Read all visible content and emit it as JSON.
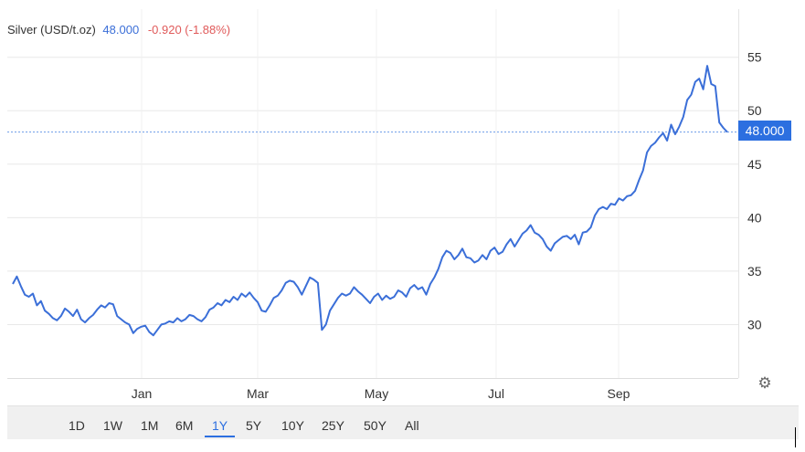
{
  "header": {
    "symbol": "Silver (USD/t.oz)",
    "price": "48.000",
    "change": "-0.920 (-1.88%)"
  },
  "last_price_label": "48.000",
  "colors": {
    "line": "#3b6fd8",
    "accent": "#2c6fe0",
    "negative": "#e05a5a",
    "grid": "#e8e8e8"
  },
  "icons": {
    "settings": "gear-icon"
  },
  "range_buttons": [
    "1D",
    "1W",
    "1M",
    "6M",
    "1Y",
    "5Y",
    "10Y",
    "25Y",
    "50Y",
    "All"
  ],
  "active_range": "1Y",
  "chart_data": {
    "type": "line",
    "title": "",
    "xlabel": "",
    "ylabel": "",
    "x_ticks": [
      "Jan",
      "Mar",
      "May",
      "Jul",
      "Sep"
    ],
    "y_ticks": [
      30,
      35,
      40,
      45,
      50,
      55
    ],
    "ylim": [
      25.0,
      59.5
    ],
    "grid": true,
    "last_value": 48.0,
    "series": [
      {
        "values": [
          33.8,
          34.5,
          33.6,
          32.8,
          32.6,
          32.9,
          31.8,
          32.2,
          31.3,
          31.0,
          30.6,
          30.4,
          30.8,
          31.5,
          31.2,
          30.8,
          31.4,
          30.5,
          30.2,
          30.6,
          30.9,
          31.4,
          31.8,
          31.6,
          32.0,
          31.9,
          30.8,
          30.5,
          30.2,
          30.0,
          29.2,
          29.6,
          29.8,
          29.9,
          29.3,
          29.0,
          29.5,
          30.0,
          30.1,
          30.3,
          30.2,
          30.6,
          30.3,
          30.5,
          30.9,
          30.8,
          30.5,
          30.3,
          30.7,
          31.4,
          31.6,
          32.0,
          31.8,
          32.3,
          32.1,
          32.6,
          32.3,
          32.9,
          32.6,
          33.0,
          32.5,
          32.1,
          31.3,
          31.2,
          31.8,
          32.5,
          32.7,
          33.2,
          33.9,
          34.1,
          34.0,
          33.5,
          32.8,
          33.6,
          34.4,
          34.2,
          33.9,
          29.5,
          30.0,
          31.3,
          31.9,
          32.5,
          32.9,
          32.7,
          32.9,
          33.5,
          33.1,
          32.8,
          32.4,
          32.0,
          32.6,
          32.9,
          32.3,
          32.7,
          32.4,
          32.6,
          33.2,
          33.0,
          32.6,
          33.4,
          33.7,
          33.3,
          33.5,
          32.8,
          33.8,
          34.4,
          35.2,
          36.3,
          36.9,
          36.7,
          36.1,
          36.5,
          37.1,
          36.3,
          36.2,
          35.8,
          36.0,
          36.5,
          36.1,
          36.9,
          37.2,
          36.6,
          36.8,
          37.5,
          38.0,
          37.3,
          37.9,
          38.5,
          38.8,
          39.3,
          38.6,
          38.4,
          38.0,
          37.3,
          36.9,
          37.6,
          37.9,
          38.2,
          38.3,
          38.0,
          38.4,
          37.5,
          38.6,
          38.7,
          39.1,
          40.2,
          40.8,
          41.0,
          40.8,
          41.3,
          41.2,
          41.8,
          41.6,
          42.0,
          42.1,
          42.5,
          43.5,
          44.4,
          46.1,
          46.7,
          47.0,
          47.5,
          47.9,
          47.2,
          48.7,
          47.8,
          48.5,
          49.4,
          51.0,
          51.5,
          52.7,
          53.0,
          52.0,
          54.2,
          52.5,
          52.3,
          48.9,
          48.4,
          48.0
        ]
      }
    ]
  }
}
